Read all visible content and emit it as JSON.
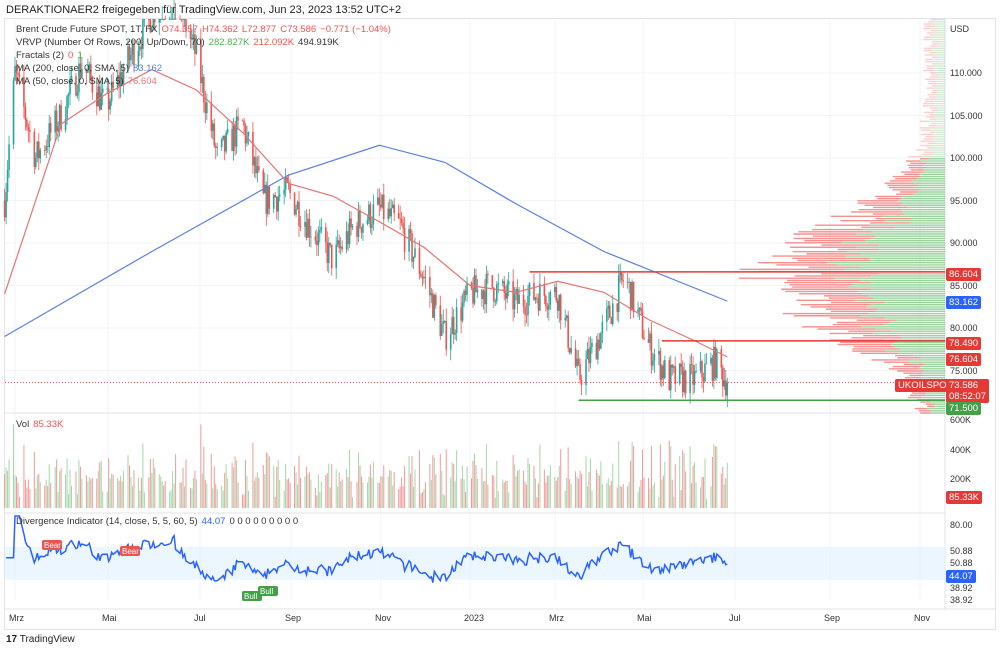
{
  "header": {
    "shared_by": "DERAKTIONAER2 freigegeben für TradingView.com, Jun 23, 2023 13:52 UTC+2"
  },
  "legend": {
    "symbol": "Brent Crude Future SPOT, 1T, FX",
    "o": "O74.357",
    "h": "H74.362",
    "l": "L72.877",
    "c": "C73.586",
    "chg": "−0.771 (−1.04%)",
    "vrvp": "VRVP (Number Of Rows, 200, Up/Down, 70)",
    "vrvp_up": "282.827K",
    "vrvp_down": "212.092K",
    "vrvp_total": "494.919K",
    "fractals": "Fractals (2)",
    "fr_a": "0",
    "fr_b": "1",
    "ma200": "MA (200, close, 0, SMA, 5)",
    "ma200_val": "83.162",
    "ma50": "MA (50, close, 0, SMA, 5)",
    "ma50_val": "76.604",
    "vol": "Vol",
    "vol_val": "85.33K",
    "div": "Divergence Indicator (14, close, 5, 5, 60, 5)",
    "div_val": "44.07",
    "div_zeros": "0 0 0 0 0 0 0 0 0"
  },
  "price_axis": {
    "currency": "USD",
    "ticks": [
      "110.000",
      "105.000",
      "100.000",
      "95.000",
      "90.000",
      "85.000",
      "80.000",
      "75.000"
    ],
    "tags": {
      "resistance": "86.604",
      "ma200": "83.162",
      "level2": "78.490",
      "ma50": "76.604",
      "symbol": "UKOILSPOT",
      "last": "73.586",
      "countdown": "08:52:07",
      "support": "71.500"
    }
  },
  "volume_axis": {
    "ticks": [
      "600K",
      "400K",
      "200K"
    ],
    "last": "85.33K"
  },
  "div_axis": {
    "ticks": [
      "80.00",
      "50.88",
      "50.88",
      "38.92",
      "38.92"
    ],
    "last": "44.07"
  },
  "div_labels": {
    "bear": "Bear",
    "bull": "Bull"
  },
  "time_axis": [
    "Mrz",
    "Mai",
    "Jul",
    "Sep",
    "Nov",
    "2023",
    "Mrz",
    "Mai",
    "Jul",
    "Sep",
    "Nov"
  ],
  "footer": {
    "brand": "TradingView"
  },
  "colors": {
    "up": "#26a69a",
    "down": "#ef5350",
    "ma200": "#5b7fde",
    "ma50": "#e57373",
    "divline": "#2962ff"
  },
  "chart_data": {
    "type": "candlestick",
    "closes": [
      [
        "2022-02-22",
        95
      ],
      [
        "2022-03-01",
        110
      ],
      [
        "2022-03-15",
        100
      ],
      [
        "2022-04-01",
        105
      ],
      [
        "2022-04-15",
        111
      ],
      [
        "2022-05-01",
        106
      ],
      [
        "2022-05-15",
        111
      ],
      [
        "2022-06-01",
        117
      ],
      [
        "2022-06-15",
        120
      ],
      [
        "2022-07-01",
        112
      ],
      [
        "2022-07-15",
        100
      ],
      [
        "2022-08-01",
        104
      ],
      [
        "2022-08-15",
        95
      ],
      [
        "2022-09-01",
        96
      ],
      [
        "2022-09-15",
        92
      ],
      [
        "2022-10-01",
        88
      ],
      [
        "2022-10-15",
        92
      ],
      [
        "2022-11-01",
        94
      ],
      [
        "2022-11-15",
        92
      ],
      [
        "2022-12-01",
        86
      ],
      [
        "2022-12-15",
        79
      ],
      [
        "2023-01-01",
        84
      ],
      [
        "2023-01-15",
        85
      ],
      [
        "2023-02-01",
        83
      ],
      [
        "2023-02-15",
        84
      ],
      [
        "2023-03-01",
        84
      ],
      [
        "2023-03-15",
        74
      ],
      [
        "2023-04-01",
        80
      ],
      [
        "2023-04-15",
        86
      ],
      [
        "2023-05-01",
        78
      ],
      [
        "2023-05-15",
        74
      ],
      [
        "2023-06-01",
        74
      ],
      [
        "2023-06-15",
        76
      ],
      [
        "2023-06-23",
        73.586
      ]
    ],
    "ma200": [
      [
        "2022-02-22",
        79
      ],
      [
        "2022-06-01",
        89
      ],
      [
        "2022-09-01",
        98
      ],
      [
        "2022-11-01",
        101.5
      ],
      [
        "2022-12-15",
        99.5
      ],
      [
        "2023-02-01",
        94.6
      ],
      [
        "2023-04-01",
        89
      ],
      [
        "2023-06-23",
        83.162
      ]
    ],
    "ma50": [
      [
        "2022-02-22",
        84
      ],
      [
        "2022-04-01",
        104
      ],
      [
        "2022-05-01",
        107.5
      ],
      [
        "2022-06-01",
        110.4
      ],
      [
        "2022-07-01",
        108
      ],
      [
        "2022-08-01",
        103
      ],
      [
        "2022-09-01",
        97
      ],
      [
        "2022-10-01",
        95.5
      ],
      [
        "2022-11-01",
        92.5
      ],
      [
        "2022-12-01",
        89.5
      ],
      [
        "2023-01-01",
        85
      ],
      [
        "2023-02-01",
        84.2
      ],
      [
        "2023-03-01",
        85.5
      ],
      [
        "2023-04-01",
        84.2
      ],
      [
        "2023-05-01",
        81
      ],
      [
        "2023-06-01",
        78.5
      ],
      [
        "2023-06-23",
        76.604
      ]
    ],
    "hlines": [
      {
        "price": 86.604,
        "from": "2023-02-10",
        "color": "#e53935"
      },
      {
        "price": 78.49,
        "from": "2023-05-10",
        "color": "#e53935"
      },
      {
        "price": 71.5,
        "from": "2023-03-15",
        "color": "#43a047"
      }
    ],
    "volume_last": 85330,
    "divergence_last": 44.07,
    "div_band": [
      38.92,
      50.88
    ]
  }
}
